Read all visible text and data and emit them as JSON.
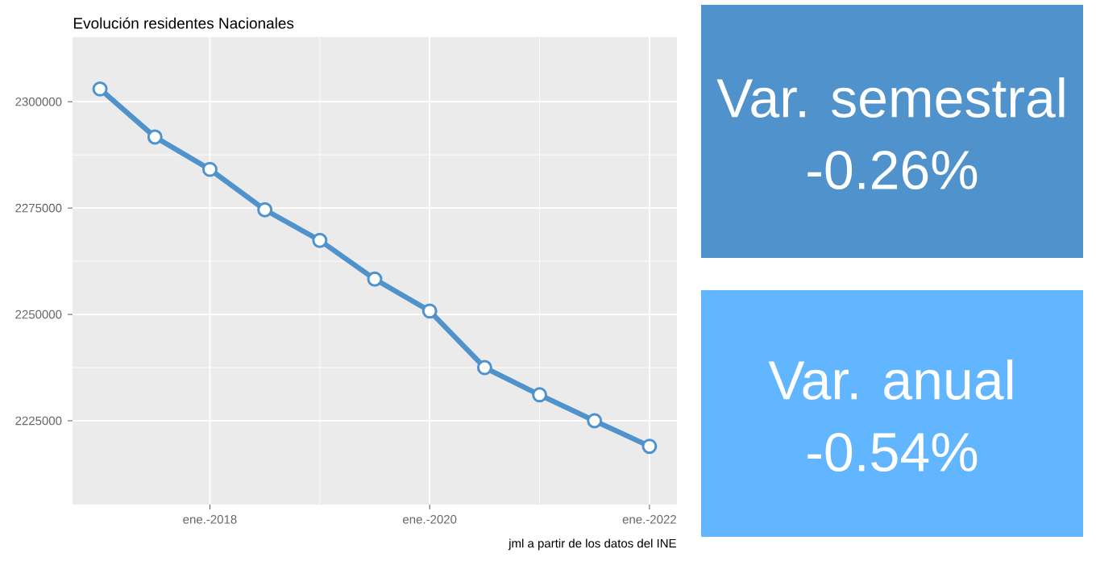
{
  "chart_data": [
    {
      "type": "line",
      "title": "Evolución residentes Nacionales",
      "x": [
        "2017-01",
        "2017-07",
        "2018-01",
        "2018-07",
        "2019-01",
        "2019-07",
        "2020-01",
        "2020-07",
        "2021-01",
        "2021-07",
        "2022-01"
      ],
      "series": [
        {
          "color": "#4f92cc",
          "values": [
            2303000,
            2291700,
            2284100,
            2274600,
            2267400,
            2258300,
            2250800,
            2237500,
            2231100,
            2225000,
            2219000
          ]
        }
      ],
      "xlim": [
        "2016-10",
        "2022-04"
      ],
      "ylim": [
        2205300,
        2315200
      ],
      "xticks": [
        {
          "value": "2018-01",
          "label": "ene.-2018"
        },
        {
          "value": "2020-01",
          "label": "ene.-2020"
        },
        {
          "value": "2022-01",
          "label": "ene.-2022"
        }
      ],
      "yticks": [
        2225000,
        2250000,
        2275000,
        2300000
      ],
      "grid": true,
      "marker": "circle",
      "line_style": "solid",
      "annotations": [
        "jml a partir de los datos del INE"
      ]
    },
    {
      "type": "other",
      "title": "Var. semestral",
      "subtitle": "-0.26%",
      "color": "#4f92cc"
    },
    {
      "type": "other",
      "title": "Var. anual",
      "subtitle": "-0.54%",
      "color": "#62b5ff"
    }
  ]
}
